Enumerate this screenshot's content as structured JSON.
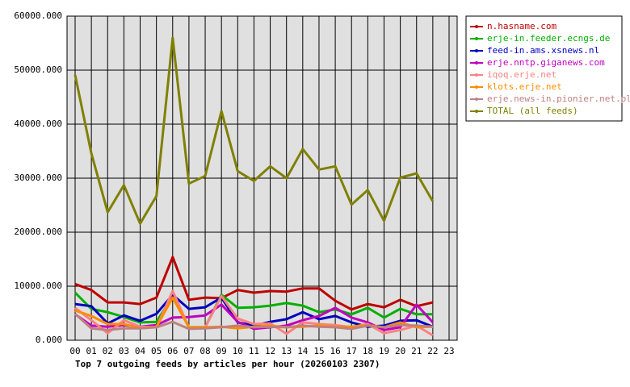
{
  "chart_data": {
    "type": "line",
    "title": "Top 7 outgoing feeds by articles per hour (20260103 2307)",
    "categories": [
      "00",
      "01",
      "02",
      "03",
      "04",
      "05",
      "06",
      "07",
      "08",
      "09",
      "10",
      "11",
      "12",
      "13",
      "14",
      "15",
      "16",
      "17",
      "18",
      "19",
      "20",
      "21",
      "22",
      "23"
    ],
    "ylim": [
      0,
      60000
    ],
    "yticks": [
      {
        "value": 0,
        "label": "0.000"
      },
      {
        "value": 10000,
        "label": "10000.000"
      },
      {
        "value": 20000,
        "label": "20000.000"
      },
      {
        "value": 30000,
        "label": "30000.000"
      },
      {
        "value": 40000,
        "label": "40000.000"
      },
      {
        "value": 50000,
        "label": "50000.000"
      },
      {
        "value": 60000,
        "label": "60000.000"
      }
    ],
    "grid": true,
    "series": [
      {
        "name": "n.hasname.com",
        "color": "#c00000",
        "values": [
          10400,
          9300,
          7000,
          7000,
          6700,
          7900,
          15400,
          7500,
          7900,
          7800,
          9300,
          8800,
          9100,
          9000,
          9600,
          9600,
          7300,
          5700,
          6700,
          6100,
          7500,
          6300,
          7000,
          null
        ]
      },
      {
        "name": "erje-in.feeder.ecngs.de",
        "color": "#00b000",
        "values": [
          8800,
          5800,
          5200,
          4300,
          3300,
          3400,
          8100,
          2400,
          2400,
          8400,
          6000,
          6100,
          6400,
          6900,
          6400,
          5200,
          5700,
          4800,
          6000,
          4200,
          5800,
          4800,
          4800,
          null
        ]
      },
      {
        "name": "feed-in.ams.xsnews.nl",
        "color": "#0000c0",
        "values": [
          6700,
          6300,
          3100,
          4600,
          3600,
          4900,
          8400,
          5800,
          6100,
          7900,
          3300,
          2700,
          3400,
          3900,
          5200,
          3900,
          4500,
          3300,
          2500,
          2700,
          3600,
          3700,
          2500,
          null
        ]
      },
      {
        "name": "erje.nntp.giganews.com",
        "color": "#c000c0",
        "values": [
          4800,
          2700,
          2500,
          2800,
          2500,
          2800,
          4200,
          4300,
          4600,
          6600,
          3400,
          2100,
          2400,
          2700,
          3700,
          4500,
          6000,
          4200,
          3300,
          1900,
          2400,
          6600,
          3300,
          null
        ]
      },
      {
        "name": "iqoq.erje.net",
        "color": "#ff8080",
        "values": [
          6000,
          3700,
          1300,
          3700,
          2500,
          2400,
          9100,
          2400,
          2400,
          8200,
          4000,
          3000,
          3100,
          1200,
          3300,
          3000,
          2800,
          2400,
          3000,
          1300,
          1900,
          2700,
          900,
          null
        ]
      },
      {
        "name": "klots.erje.net",
        "color": "#ff8c00",
        "values": [
          5500,
          4500,
          3000,
          3000,
          2200,
          2500,
          7900,
          2400,
          2400,
          2500,
          2200,
          2500,
          2700,
          2400,
          2500,
          2700,
          2500,
          2500,
          2800,
          2400,
          3300,
          2400,
          2500,
          null
        ]
      },
      {
        "name": "erje.news-in.pionier.net.pl",
        "color": "#c08080",
        "values": [
          4900,
          2200,
          1900,
          2200,
          2200,
          2400,
          3400,
          2100,
          2200,
          2400,
          2700,
          2400,
          2500,
          2400,
          2700,
          2500,
          2400,
          2100,
          2700,
          2400,
          2800,
          2700,
          2500,
          null
        ]
      },
      {
        "name": "TOTAL (all feeds)",
        "color": "#808000",
        "values": [
          49100,
          34600,
          23700,
          28700,
          21600,
          26700,
          56000,
          29000,
          30400,
          42400,
          31300,
          29500,
          32200,
          30000,
          35400,
          31600,
          32200,
          25100,
          27800,
          22100,
          30100,
          30900,
          25700,
          null
        ]
      }
    ]
  }
}
